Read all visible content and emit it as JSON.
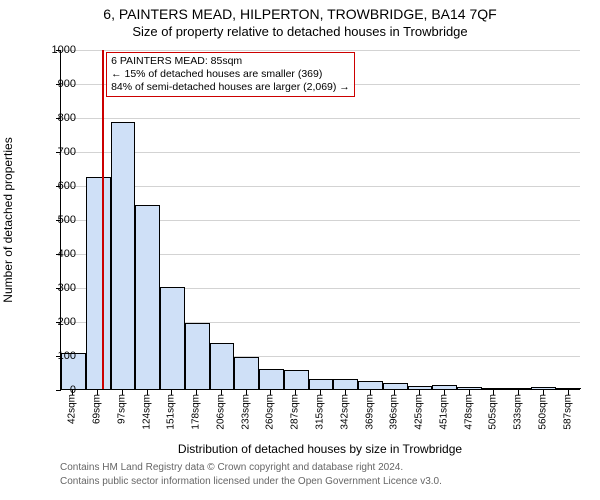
{
  "chart": {
    "type": "histogram",
    "title_line1": "6, PAINTERS MEAD, HILPERTON, TROWBRIDGE, BA14 7QF",
    "title_line2": "Size of property relative to detached houses in Trowbridge",
    "ylabel": "Number of detached properties",
    "xlabel": "Distribution of detached houses by size in Trowbridge",
    "ylim": [
      0,
      1000
    ],
    "ytick_step": 100,
    "yticks": [
      0,
      100,
      200,
      300,
      400,
      500,
      600,
      700,
      800,
      900,
      1000
    ],
    "xtick_labels": [
      "42sqm",
      "69sqm",
      "97sqm",
      "124sqm",
      "151sqm",
      "178sqm",
      "206sqm",
      "233sqm",
      "260sqm",
      "287sqm",
      "315sqm",
      "342sqm",
      "369sqm",
      "396sqm",
      "425sqm",
      "451sqm",
      "478sqm",
      "505sqm",
      "533sqm",
      "560sqm",
      "587sqm"
    ],
    "bars": {
      "count": 21,
      "values": [
        105,
        625,
        785,
        540,
        300,
        195,
        135,
        95,
        58,
        55,
        30,
        28,
        25,
        18,
        8,
        12,
        5,
        4,
        0,
        6,
        3
      ],
      "fill_color": "#cfe0f7",
      "border_color": "#000000",
      "border_width": 0.5
    },
    "marker": {
      "value_sqm": 85,
      "fractional_position": 0.079,
      "color": "#cc0000"
    },
    "annotation": {
      "line1": "6 PAINTERS MEAD: 85sqm",
      "line2": "← 15% of detached houses are smaller (369)",
      "line3": "84% of semi-detached houses are larger (2,069) →",
      "border_color": "#cc0000",
      "fontsize": 10.5
    },
    "grid_color": "#808080",
    "background_color": "#ffffff",
    "axis_color": "#000000",
    "title_fontsize": 14,
    "subtitle_fontsize": 13,
    "label_fontsize": 12,
    "tick_fontsize": 11
  },
  "footer": {
    "line1": "Contains HM Land Registry data © Crown copyright and database right 2024.",
    "line2": "Contains public sector information licensed under the Open Government Licence v3.0."
  }
}
